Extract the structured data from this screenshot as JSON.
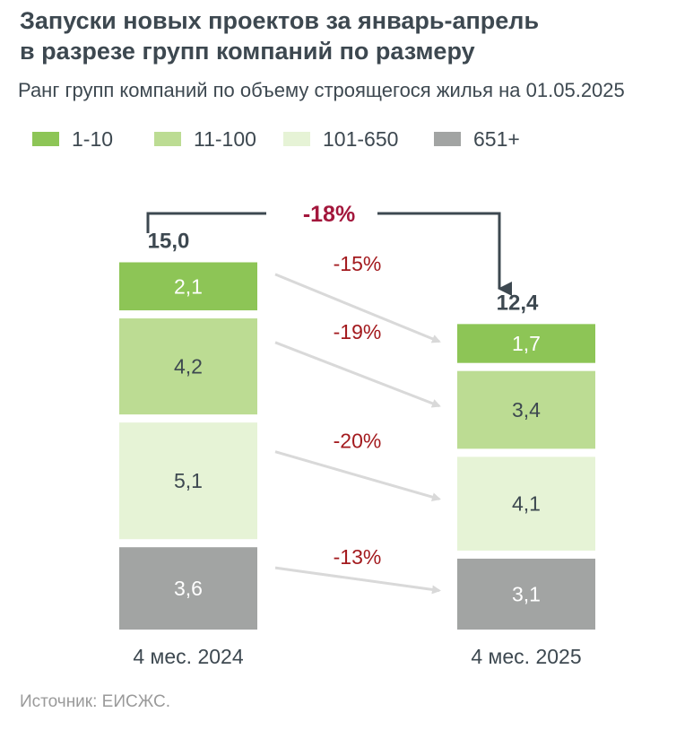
{
  "title_line1": "Запуски новых проектов за январь-апрель",
  "title_line2": "в разрезе групп компаний по размеру",
  "subtitle": "Ранг групп компаний по объему строящегося жилья на 01.05.2025",
  "source": "Источник: ЕИСЖС.",
  "legend": [
    {
      "label": "1-10",
      "color": "#8dc556"
    },
    {
      "label": "11-100",
      "color": "#bcdc93"
    },
    {
      "label": "101-650",
      "color": "#e6f3d6"
    },
    {
      "label": "651+",
      "color": "#a2a4a3"
    }
  ],
  "chart_data": {
    "type": "bar",
    "stacked": true,
    "categories": [
      "4 мес. 2024",
      "4 мес. 2025"
    ],
    "totals": [
      "15,0",
      "12,4"
    ],
    "series": [
      {
        "name": "1-10",
        "values": [
          2.1,
          1.7
        ],
        "labels": [
          "2,1",
          "1,7"
        ],
        "color": "#8dc556",
        "change": "-15%"
      },
      {
        "name": "11-100",
        "values": [
          4.2,
          3.4
        ],
        "labels": [
          "4,2",
          "3,4"
        ],
        "color": "#bcdc93",
        "change": "-19%"
      },
      {
        "name": "101-650",
        "values": [
          5.1,
          4.1
        ],
        "labels": [
          "5,1",
          "4,1"
        ],
        "color": "#e6f3d6",
        "change": "-20%"
      },
      {
        "name": "651+",
        "values": [
          3.6,
          3.1
        ],
        "labels": [
          "3,6",
          "3,1"
        ],
        "color": "#a2a4a3",
        "change": "-13%"
      }
    ],
    "total_change": "-18%",
    "total_change_color": "#a3173c",
    "segment_change_color": "#a31a1e",
    "label_text_color": "#3d4850",
    "segment_label_light_color": "#ffffff",
    "connector_color": "#3d4850",
    "arrow_color": "#d9d9d9"
  }
}
